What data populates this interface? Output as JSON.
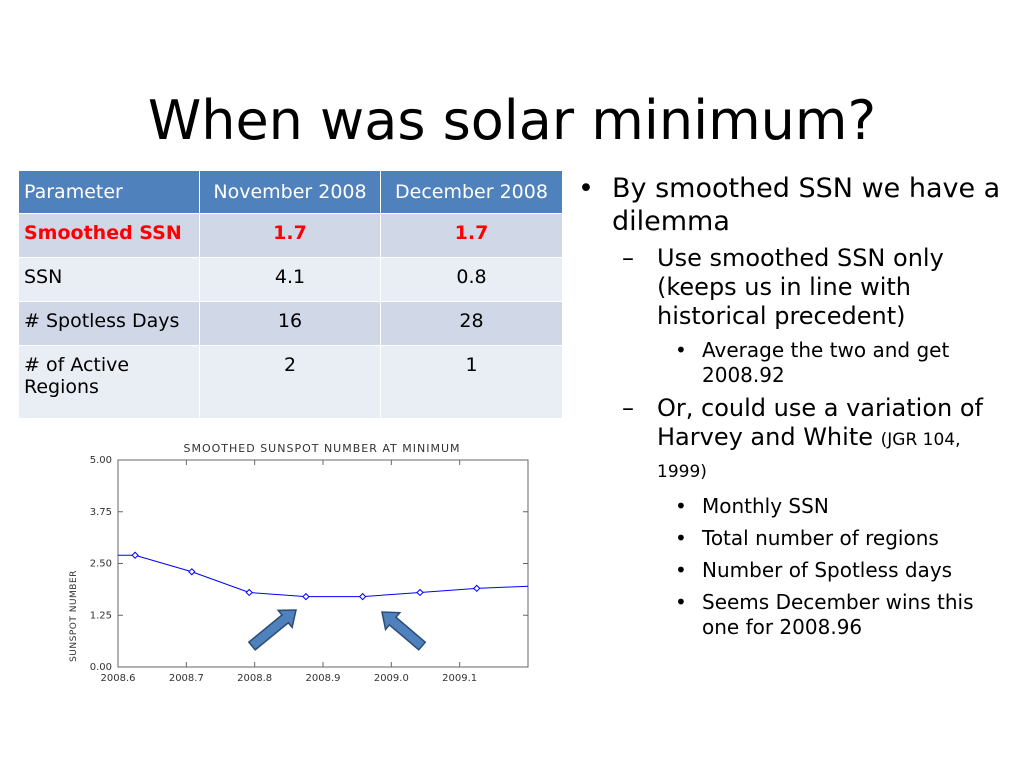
{
  "title": "When was solar minimum?",
  "table": {
    "headers": [
      "Parameter",
      "November 2008",
      "December 2008"
    ],
    "rows": [
      [
        "Smoothed SSN",
        "1.7",
        "1.7"
      ],
      [
        "SSN",
        "4.1",
        "0.8"
      ],
      [
        "# Spotless Days",
        "16",
        "28"
      ],
      [
        "# of Active Regions",
        "2",
        "1"
      ]
    ],
    "highlight_color": "#ff0000",
    "header_color": "#4f81bd"
  },
  "bullets": {
    "b1": "By smoothed SSN we have a dilemma",
    "b1_1": "Use smoothed SSN only (keeps us in line with historical precedent)",
    "b1_1_1": "Average the two and get 2008.92",
    "b1_2_main": "Or, could use a variation of Harvey and White",
    "b1_2_ref": "(JGR 104, 1999)",
    "b1_2_1": "Monthly SSN",
    "b1_2_2": "Total number of regions",
    "b1_2_3": "Number of Spotless days",
    "b1_2_4": "Seems December wins this one for 2008.96"
  },
  "chart_data": {
    "type": "line",
    "title": "SMOOTHED SUNSPOT NUMBER AT MINIMUM",
    "xlabel": "",
    "ylabel": "SUNSPOT NUMBER",
    "xlim": [
      2008.6,
      2009.2
    ],
    "ylim": [
      0,
      5
    ],
    "xticks": [
      "2008.6",
      "2008.7",
      "2008.8",
      "2008.9",
      "2009.0",
      "2009.1"
    ],
    "yticks": [
      "0.00",
      "1.25",
      "2.50",
      "3.75",
      "5.00"
    ],
    "series": [
      {
        "color": "#0000ff",
        "x": [
          2008.625,
          2008.708,
          2008.792,
          2008.875,
          2008.958,
          2009.042,
          2009.125
        ],
        "y": [
          2.7,
          2.3,
          1.8,
          1.7,
          1.7,
          1.8,
          1.9
        ]
      }
    ],
    "line_end": {
      "x": 2009.2,
      "y": 1.95
    },
    "line_start": {
      "x": 2008.6,
      "y": 2.7
    },
    "arrow_color": "#4f81bd"
  }
}
